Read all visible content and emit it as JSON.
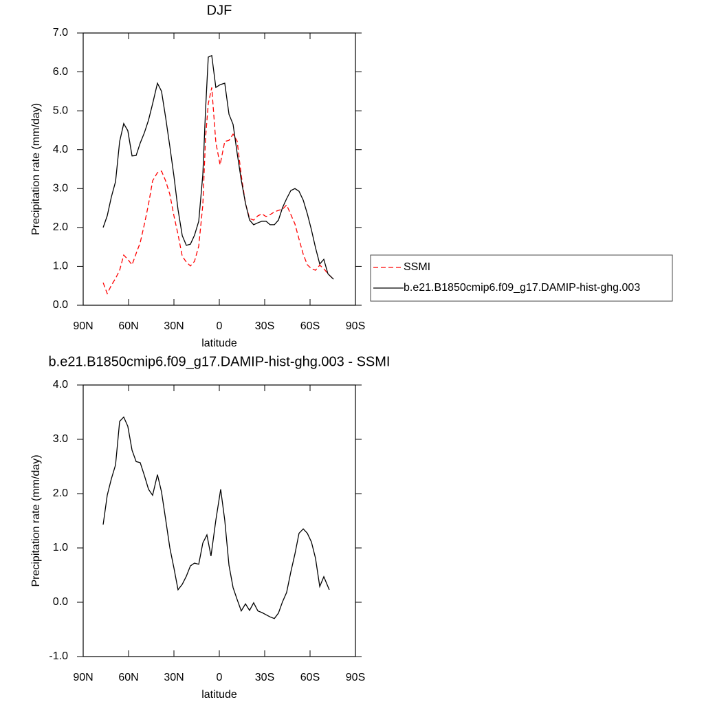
{
  "chart_data": [
    {
      "type": "line",
      "title": "DJF",
      "x_label": "latitude",
      "y_label": "Precipitation rate (mm/day)",
      "x": [
        76.8,
        74.1,
        71.4,
        68.6,
        65.9,
        63.2,
        60.5,
        57.7,
        55.0,
        52.3,
        49.5,
        46.8,
        44.1,
        40.9,
        38.2,
        35.5,
        32.7,
        30.0,
        27.3,
        24.5,
        21.8,
        19.1,
        16.4,
        13.6,
        10.9,
        9.1,
        7.3,
        5.0,
        2.3,
        -0.5,
        -3.6,
        -6.4,
        -9.1,
        -11.8,
        -14.5,
        -17.3,
        -20.0,
        -22.7,
        -25.5,
        -28.2,
        -30.9,
        -33.6,
        -36.4,
        -39.1,
        -41.8,
        -44.5,
        -47.3,
        -50.0,
        -52.7,
        -55.5,
        -58.2,
        -60.9,
        -63.6,
        -66.4,
        -69.1,
        -71.8,
        -75.5
      ],
      "series": [
        {
          "name": "SSMI",
          "color": "#ff0000",
          "line_style": "dashed",
          "values": [
            0.58,
            0.3,
            0.51,
            0.69,
            0.9,
            1.29,
            1.18,
            1.04,
            1.33,
            1.61,
            2.09,
            2.6,
            3.2,
            3.41,
            3.45,
            3.2,
            2.85,
            2.3,
            1.82,
            1.26,
            1.11,
            1.01,
            1.13,
            1.52,
            2.58,
            4.3,
            5.18,
            5.6,
            4.19,
            3.61,
            4.21,
            4.24,
            4.4,
            4.22,
            3.34,
            2.62,
            2.23,
            2.19,
            2.3,
            2.35,
            2.28,
            2.33,
            2.4,
            2.44,
            2.47,
            2.58,
            2.33,
            2.09,
            1.7,
            1.31,
            1.04,
            0.94,
            0.9,
            1.03,
            0.94,
            0.81,
            0.67
          ]
        },
        {
          "name": "b.e21.B1850cmip6.f09_g17.DAMIP-hist-ghg.003",
          "color": "#000000",
          "line_style": "solid",
          "values": [
            2.0,
            2.3,
            2.78,
            3.18,
            4.21,
            4.67,
            4.49,
            3.84,
            3.85,
            4.17,
            4.44,
            4.76,
            5.18,
            5.71,
            5.5,
            4.83,
            4.08,
            3.32,
            2.46,
            1.79,
            1.54,
            1.57,
            1.8,
            2.16,
            3.36,
            5.02,
            6.38,
            6.42,
            5.6,
            5.67,
            5.71,
            4.91,
            4.65,
            3.91,
            3.22,
            2.62,
            2.19,
            2.07,
            2.12,
            2.16,
            2.16,
            2.07,
            2.07,
            2.19,
            2.51,
            2.74,
            2.95,
            3.0,
            2.93,
            2.7,
            2.35,
            1.94,
            1.48,
            1.06,
            1.18,
            0.81,
            0.67
          ]
        }
      ],
      "xlim": [
        90,
        -90
      ],
      "xticks": [
        {
          "value": 90,
          "label": "90N"
        },
        {
          "value": 60,
          "label": "60N"
        },
        {
          "value": 30,
          "label": "30N"
        },
        0,
        {
          "value": -30,
          "label": "30S"
        },
        {
          "value": -60,
          "label": "60S"
        },
        {
          "value": -90,
          "label": "90S"
        }
      ],
      "ylim": [
        0,
        7
      ],
      "yticks": [
        {
          "value": 0,
          "label": "0.0"
        },
        {
          "value": 1,
          "label": "1.0"
        },
        {
          "value": 2,
          "label": "2.0"
        },
        {
          "value": 3,
          "label": "3.0"
        },
        {
          "value": 4,
          "label": "4.0"
        },
        {
          "value": 5,
          "label": "5.0"
        },
        {
          "value": 6,
          "label": "6.0"
        },
        {
          "value": 7,
          "label": "7.0"
        }
      ],
      "legend": "right"
    },
    {
      "type": "line",
      "title": "b.e21.B1850cmip6.f09_g17.DAMIP-hist-ghg.003 - SSMI",
      "x_label": "latitude",
      "y_label": "Precipitation rate (mm/day)",
      "x": [
        76.8,
        74.1,
        71.4,
        68.6,
        65.9,
        63.2,
        60.5,
        57.7,
        55.0,
        52.3,
        49.5,
        46.8,
        44.1,
        40.9,
        38.2,
        35.5,
        32.7,
        30.0,
        27.3,
        24.5,
        21.8,
        19.1,
        16.4,
        13.6,
        10.9,
        8.2,
        5.5,
        2.3,
        -0.9,
        -3.6,
        -6.4,
        -9.1,
        -11.8,
        -14.5,
        -17.3,
        -20.0,
        -22.7,
        -25.5,
        -28.2,
        -30.9,
        -33.6,
        -36.4,
        -39.1,
        -41.8,
        -44.5,
        -47.3,
        -50.0,
        -52.7,
        -55.5,
        -58.2,
        -60.9,
        -63.6,
        -66.4,
        -69.1,
        -72.7
      ],
      "series": [
        {
          "color": "#000000",
          "line_style": "solid",
          "values": [
            1.43,
            1.97,
            2.27,
            2.53,
            3.33,
            3.41,
            3.24,
            2.8,
            2.59,
            2.57,
            2.33,
            2.08,
            1.97,
            2.35,
            2.03,
            1.53,
            1.0,
            0.63,
            0.23,
            0.33,
            0.48,
            0.67,
            0.72,
            0.7,
            1.09,
            1.24,
            0.85,
            1.51,
            2.08,
            1.51,
            0.68,
            0.27,
            0.05,
            -0.16,
            -0.03,
            -0.15,
            -0.01,
            -0.16,
            -0.19,
            -0.23,
            -0.27,
            -0.3,
            -0.2,
            0.01,
            0.18,
            0.56,
            0.89,
            1.27,
            1.35,
            1.27,
            1.11,
            0.81,
            0.29,
            0.47,
            0.23
          ]
        }
      ],
      "xlim": [
        90,
        -90
      ],
      "xticks": [
        {
          "value": 90,
          "label": "90N"
        },
        {
          "value": 60,
          "label": "60N"
        },
        {
          "value": 30,
          "label": "30N"
        },
        0,
        {
          "value": -30,
          "label": "30S"
        },
        {
          "value": -60,
          "label": "60S"
        },
        {
          "value": -90,
          "label": "90S"
        }
      ],
      "ylim": [
        -1,
        4
      ],
      "yticks": [
        {
          "value": -1,
          "label": "-1.0"
        },
        {
          "value": 0,
          "label": "0.0"
        },
        {
          "value": 1,
          "label": "1.0"
        },
        {
          "value": 2,
          "label": "2.0"
        },
        {
          "value": 3,
          "label": "3.0"
        },
        {
          "value": 4,
          "label": "4.0"
        }
      ]
    }
  ]
}
